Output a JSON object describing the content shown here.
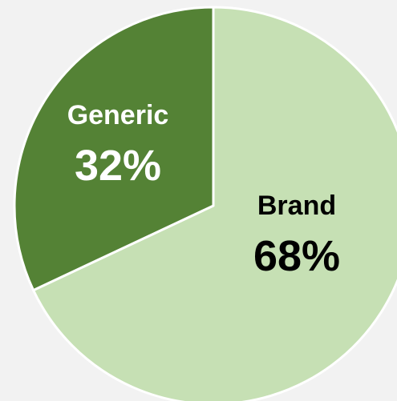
{
  "chart_data": {
    "type": "pie",
    "slices": [
      {
        "label": "Brand",
        "value": 68,
        "value_label": "68%",
        "color": "#c6e0b4",
        "label_color": "#000000"
      },
      {
        "label": "Generic",
        "value": 32,
        "value_label": "32%",
        "color": "#548235",
        "label_color": "#ffffff"
      }
    ],
    "edge_color": "#ffffff",
    "legend": "none"
  }
}
